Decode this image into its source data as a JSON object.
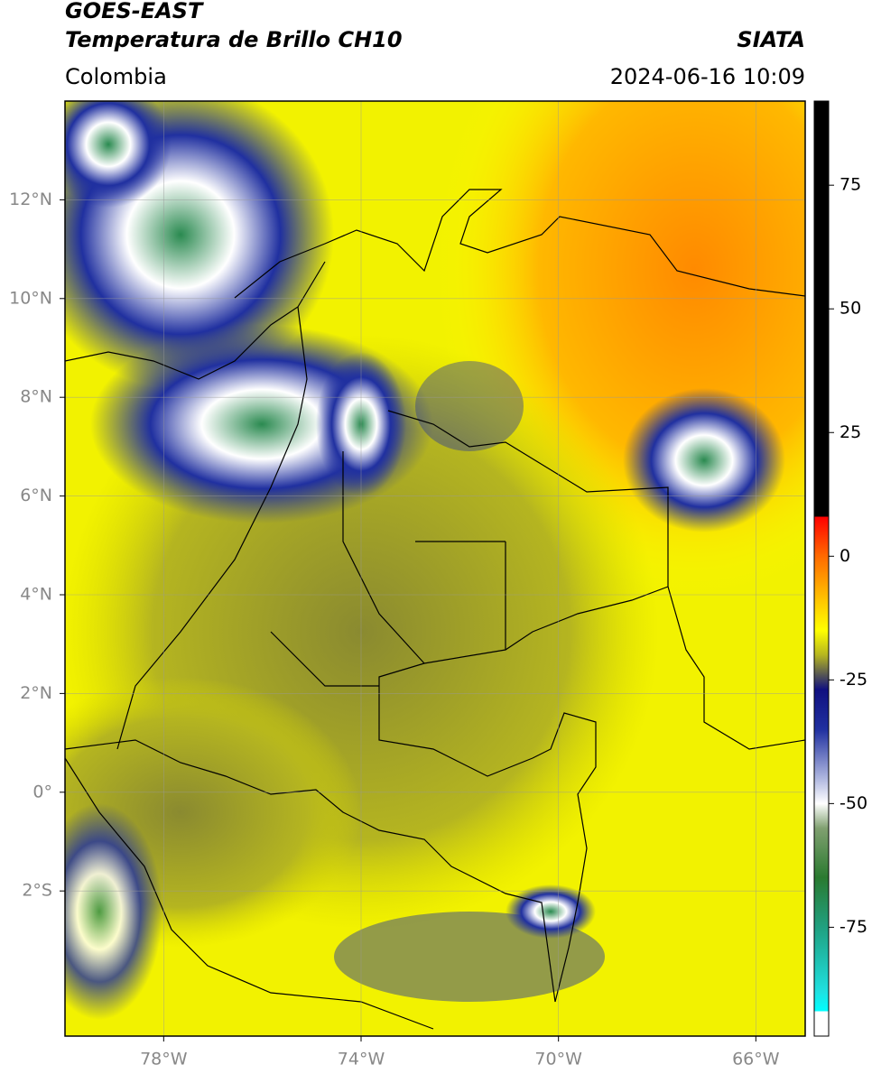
{
  "header": {
    "title": "GOES-EAST",
    "subtitle": "Temperatura de Brillo CH10",
    "source": "SIATA",
    "region": "Colombia",
    "datetime": "2024-06-16 10:09"
  },
  "map": {
    "lonlim": [
      -80,
      -65
    ],
    "latlim": [
      -4.94,
      14
    ],
    "lonticks": [
      {
        "value": -78,
        "label": "78°W"
      },
      {
        "value": -74,
        "label": "74°W"
      },
      {
        "value": -70,
        "label": "70°W"
      },
      {
        "value": -66,
        "label": "66°W"
      }
    ],
    "latticks": [
      {
        "value": 12,
        "label": "12°N"
      },
      {
        "value": 10,
        "label": "10°N"
      },
      {
        "value": 8,
        "label": "8°N"
      },
      {
        "value": 6,
        "label": "6°N"
      },
      {
        "value": 4,
        "label": "4°N"
      },
      {
        "value": 2,
        "label": "2°N"
      },
      {
        "value": 0,
        "label": "0°"
      },
      {
        "value": -2,
        "label": "2°S"
      }
    ],
    "grid": true
  },
  "colorbar": {
    "lim": [
      -97,
      92
    ],
    "ticks": [
      75,
      50,
      25,
      0,
      -25,
      -50,
      -75
    ],
    "stops": [
      {
        "value": 92,
        "color": "#000000"
      },
      {
        "value": 8,
        "color": "#000000"
      },
      {
        "value": 8,
        "color": "#ff0000"
      },
      {
        "value": 0,
        "color": "#ff6a00"
      },
      {
        "value": -10,
        "color": "#ffd000"
      },
      {
        "value": -15,
        "color": "#ffff00"
      },
      {
        "value": -20,
        "color": "#b5b520"
      },
      {
        "value": -24,
        "color": "#555555"
      },
      {
        "value": -27,
        "color": "#101080"
      },
      {
        "value": -35,
        "color": "#2030a0"
      },
      {
        "value": -45,
        "color": "#b0b8e0"
      },
      {
        "value": -50,
        "color": "#ffffff"
      },
      {
        "value": -55,
        "color": "#80a070"
      },
      {
        "value": -65,
        "color": "#2a7a30"
      },
      {
        "value": -75,
        "color": "#20a080"
      },
      {
        "value": -88,
        "color": "#20e0e0"
      },
      {
        "value": -92,
        "color": "#00ffff"
      },
      {
        "value": -92,
        "color": "#ffffff"
      },
      {
        "value": -97,
        "color": "#ffffff"
      }
    ]
  }
}
